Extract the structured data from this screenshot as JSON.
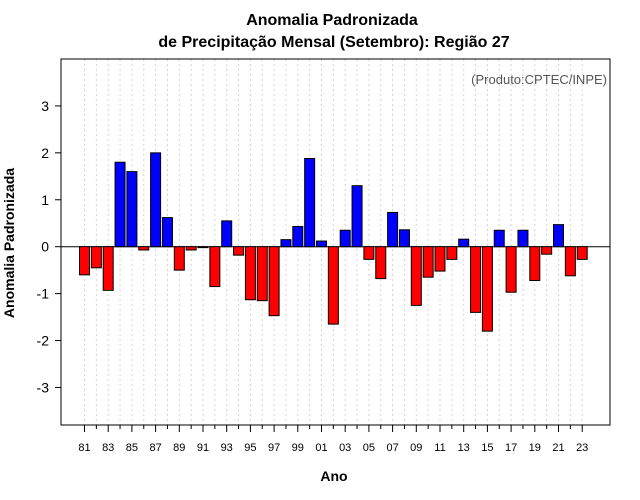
{
  "chart_data": {
    "type": "bar",
    "title_line1": "Anomalia Padronizada",
    "title_line2": "de Precipitação Mensal (Setembro): Região 27",
    "xlabel": "Ano",
    "ylabel": "Anomalia Padronizada",
    "annotation": "(Produto:CPTEC/INPE)",
    "ylim": [
      -3.8,
      4.0
    ],
    "yticks": [
      -3,
      -2,
      -1,
      0,
      1,
      2,
      3
    ],
    "ytick_labels": [
      "-3",
      "-2",
      "-1",
      "0",
      "1",
      "2",
      "3"
    ],
    "categories": [
      "81",
      "82",
      "83",
      "84",
      "85",
      "86",
      "87",
      "88",
      "89",
      "90",
      "91",
      "92",
      "93",
      "94",
      "95",
      "96",
      "97",
      "98",
      "99",
      "00",
      "01",
      "02",
      "03",
      "04",
      "05",
      "06",
      "07",
      "08",
      "09",
      "10",
      "11",
      "12",
      "13",
      "14",
      "15",
      "16",
      "17",
      "18",
      "19",
      "20",
      "21",
      "22",
      "23"
    ],
    "xtick_labels": [
      "81",
      "83",
      "85",
      "87",
      "89",
      "91",
      "93",
      "95",
      "97",
      "99",
      "01",
      "03",
      "05",
      "07",
      "09",
      "11",
      "13",
      "15",
      "17",
      "19",
      "21",
      "23"
    ],
    "values": [
      -0.6,
      -0.45,
      -0.93,
      1.8,
      1.6,
      -0.07,
      2.0,
      0.62,
      -0.5,
      -0.07,
      -0.02,
      -0.85,
      0.55,
      -0.18,
      -1.13,
      -1.15,
      -1.47,
      0.15,
      0.43,
      1.88,
      0.12,
      -1.65,
      0.35,
      1.3,
      -0.27,
      -0.68,
      0.73,
      0.36,
      -1.25,
      -0.65,
      -0.52,
      -0.27,
      0.16,
      -1.4,
      -1.8,
      0.35,
      -0.97,
      0.35,
      -0.72,
      -0.16,
      0.47,
      -0.62,
      -0.27
    ],
    "colors": {
      "positive": "#0000ff",
      "negative": "#ff0000",
      "outline": "#000000",
      "grid": "#d3d3d3"
    }
  }
}
